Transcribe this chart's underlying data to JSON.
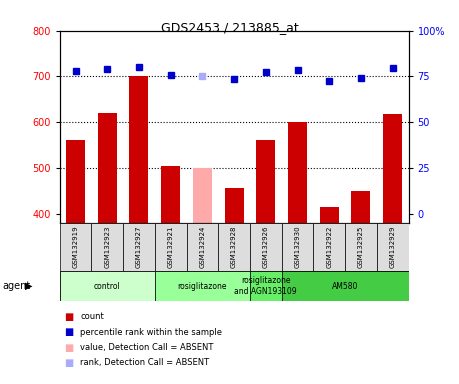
{
  "title": "GDS2453 / 213885_at",
  "samples": [
    "GSM132919",
    "GSM132923",
    "GSM132927",
    "GSM132921",
    "GSM132924",
    "GSM132928",
    "GSM132926",
    "GSM132930",
    "GSM132922",
    "GSM132925",
    "GSM132929"
  ],
  "bar_values": [
    560,
    620,
    700,
    505,
    500,
    455,
    560,
    600,
    415,
    450,
    618
  ],
  "bar_colors": [
    "#cc0000",
    "#cc0000",
    "#cc0000",
    "#cc0000",
    "#ffaaaa",
    "#cc0000",
    "#cc0000",
    "#cc0000",
    "#cc0000",
    "#cc0000",
    "#cc0000"
  ],
  "percentile_values": [
    711,
    717,
    720,
    703,
    702,
    694,
    710,
    713,
    689,
    696,
    718
  ],
  "percentile_absent": [
    false,
    false,
    false,
    false,
    true,
    false,
    false,
    false,
    false,
    false,
    false
  ],
  "ylim_left": [
    380,
    800
  ],
  "yticks_left": [
    400,
    500,
    600,
    700,
    800
  ],
  "yticks_right_labels": [
    "0",
    "25",
    "50",
    "75",
    "100%"
  ],
  "grid_vals": [
    500,
    600,
    700
  ],
  "agent_groups": [
    {
      "label": "control",
      "start": 0,
      "end": 3,
      "color": "#ccffcc"
    },
    {
      "label": "rosiglitazone",
      "start": 3,
      "end": 6,
      "color": "#99ff99"
    },
    {
      "label": "rosiglitazone\nand AGN193109",
      "start": 6,
      "end": 7,
      "color": "#66ee66"
    },
    {
      "label": "AM580",
      "start": 7,
      "end": 11,
      "color": "#44cc44"
    }
  ],
  "legend_items": [
    {
      "label": "count",
      "color": "#cc0000"
    },
    {
      "label": "percentile rank within the sample",
      "color": "#0000cc"
    },
    {
      "label": "value, Detection Call = ABSENT",
      "color": "#ffaaaa"
    },
    {
      "label": "rank, Detection Call = ABSENT",
      "color": "#aaaaff"
    }
  ],
  "bar_width": 0.6
}
